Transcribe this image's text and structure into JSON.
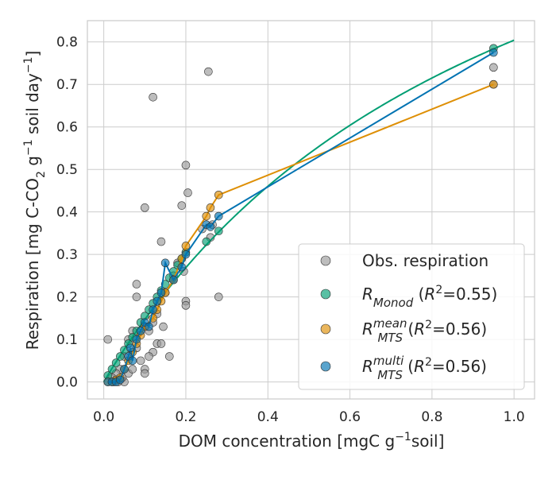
{
  "chart_data": {
    "type": "scatter",
    "xlabel": "DOM concentration [mgC g⁻¹soil]",
    "ylabel": "Respiration [mg C-CO₂ g⁻¹ soil day⁻¹]",
    "xlim": [
      -0.04,
      1.05
    ],
    "ylim": [
      -0.04,
      0.85
    ],
    "x_ticks": [
      "0.0",
      "0.2",
      "0.4",
      "0.6",
      "0.8",
      "1.0"
    ],
    "y_ticks": [
      "0.0",
      "0.1",
      "0.2",
      "0.3",
      "0.4",
      "0.5",
      "0.6",
      "0.7",
      "0.8"
    ],
    "x_tick_values": [
      0,
      0.2,
      0.4,
      0.6,
      0.8,
      1.0
    ],
    "y_tick_values": [
      0,
      0.1,
      0.2,
      0.3,
      0.4,
      0.5,
      0.6,
      0.7,
      0.8
    ],
    "grid": true,
    "legend_position": "bottom-right",
    "series": [
      {
        "name": "Obs. respiration",
        "kind": "scatter",
        "color": "#999999",
        "points": [
          [
            0.01,
            0.1
          ],
          [
            0.12,
            0.67
          ],
          [
            0.255,
            0.73
          ],
          [
            0.2,
            0.51
          ],
          [
            0.205,
            0.445
          ],
          [
            0.19,
            0.415
          ],
          [
            0.1,
            0.41
          ],
          [
            0.14,
            0.33
          ],
          [
            0.95,
            0.74
          ],
          [
            0.95,
            0.7
          ],
          [
            0.08,
            0.23
          ],
          [
            0.08,
            0.2
          ],
          [
            0.2,
            0.19
          ],
          [
            0.2,
            0.18
          ],
          [
            0.145,
            0.13
          ],
          [
            0.16,
            0.06
          ],
          [
            0.13,
            0.09
          ],
          [
            0.14,
            0.09
          ],
          [
            0.12,
            0.07
          ],
          [
            0.11,
            0.06
          ],
          [
            0.1,
            0.03
          ],
          [
            0.1,
            0.02
          ],
          [
            0.28,
            0.2
          ],
          [
            0.26,
            0.34
          ],
          [
            0.265,
            0.37
          ],
          [
            0.24,
            0.36
          ],
          [
            0.195,
            0.26
          ],
          [
            0.06,
            0.1
          ],
          [
            0.07,
            0.12
          ],
          [
            0.05,
            0.06
          ],
          [
            0.04,
            0.03
          ],
          [
            0.03,
            0.02
          ],
          [
            0.02,
            0.01
          ],
          [
            0.05,
            0.0
          ],
          [
            0.06,
            0.02
          ],
          [
            0.07,
            0.03
          ],
          [
            0.09,
            0.05
          ],
          [
            0.08,
            0.08
          ],
          [
            0.12,
            0.14
          ],
          [
            0.13,
            0.16
          ],
          [
            0.11,
            0.12
          ],
          [
            0.15,
            0.21
          ],
          [
            0.18,
            0.28
          ],
          [
            0.17,
            0.25
          ],
          [
            0.025,
            0.0
          ],
          [
            0.035,
            0.0
          ],
          [
            0.045,
            0.01
          ]
        ]
      },
      {
        "name": "R_Monod (R²=0.55)",
        "kind": "scatter+curve",
        "color": "#029e73",
        "curve_Vmax": 1.6,
        "curve_K": 0.99,
        "points": [
          [
            0.01,
            0.015
          ],
          [
            0.02,
            0.03
          ],
          [
            0.03,
            0.045
          ],
          [
            0.04,
            0.06
          ],
          [
            0.05,
            0.075
          ],
          [
            0.06,
            0.09
          ],
          [
            0.07,
            0.105
          ],
          [
            0.08,
            0.12
          ],
          [
            0.09,
            0.14
          ],
          [
            0.1,
            0.155
          ],
          [
            0.11,
            0.17
          ],
          [
            0.12,
            0.185
          ],
          [
            0.13,
            0.2
          ],
          [
            0.14,
            0.215
          ],
          [
            0.15,
            0.23
          ],
          [
            0.16,
            0.245
          ],
          [
            0.17,
            0.26
          ],
          [
            0.18,
            0.275
          ],
          [
            0.19,
            0.29
          ],
          [
            0.2,
            0.305
          ],
          [
            0.25,
            0.33
          ],
          [
            0.28,
            0.355
          ],
          [
            0.95,
            0.785
          ]
        ]
      },
      {
        "name": "R_MTS^mean (R²=0.56)",
        "kind": "scatter+line",
        "color": "#de8f05",
        "points": [
          [
            0.01,
            0.0
          ],
          [
            0.02,
            0.0
          ],
          [
            0.03,
            0.005
          ],
          [
            0.04,
            0.01
          ],
          [
            0.05,
            0.03
          ],
          [
            0.06,
            0.05
          ],
          [
            0.07,
            0.07
          ],
          [
            0.08,
            0.09
          ],
          [
            0.09,
            0.11
          ],
          [
            0.1,
            0.13
          ],
          [
            0.12,
            0.15
          ],
          [
            0.13,
            0.17
          ],
          [
            0.14,
            0.19
          ],
          [
            0.15,
            0.21
          ],
          [
            0.17,
            0.24
          ],
          [
            0.19,
            0.29
          ],
          [
            0.2,
            0.32
          ],
          [
            0.25,
            0.39
          ],
          [
            0.26,
            0.41
          ],
          [
            0.28,
            0.44
          ],
          [
            0.95,
            0.7
          ]
        ]
      },
      {
        "name": "R_MTS^multi (R²=0.56)",
        "kind": "scatter+line",
        "color": "#0173b2",
        "points": [
          [
            0.01,
            0.0
          ],
          [
            0.02,
            0.0
          ],
          [
            0.03,
            0.0
          ],
          [
            0.04,
            0.005
          ],
          [
            0.05,
            0.03
          ],
          [
            0.06,
            0.06
          ],
          [
            0.065,
            0.08
          ],
          [
            0.07,
            0.05
          ],
          [
            0.08,
            0.1
          ],
          [
            0.09,
            0.12
          ],
          [
            0.1,
            0.14
          ],
          [
            0.11,
            0.13
          ],
          [
            0.12,
            0.17
          ],
          [
            0.13,
            0.19
          ],
          [
            0.14,
            0.21
          ],
          [
            0.15,
            0.28
          ],
          [
            0.17,
            0.24
          ],
          [
            0.19,
            0.27
          ],
          [
            0.2,
            0.3
          ],
          [
            0.25,
            0.37
          ],
          [
            0.26,
            0.365
          ],
          [
            0.28,
            0.39
          ],
          [
            0.95,
            0.775
          ]
        ]
      }
    ],
    "legend": [
      {
        "label": "Obs. respiration",
        "color": "#999999"
      },
      {
        "label": "R_Monod (R²=0.55)",
        "color": "#029e73"
      },
      {
        "label": "R_MTS^mean (R²=0.56)",
        "color": "#de8f05"
      },
      {
        "label": "R_MTS^multi (R²=0.56)",
        "color": "#0173b2"
      }
    ]
  }
}
